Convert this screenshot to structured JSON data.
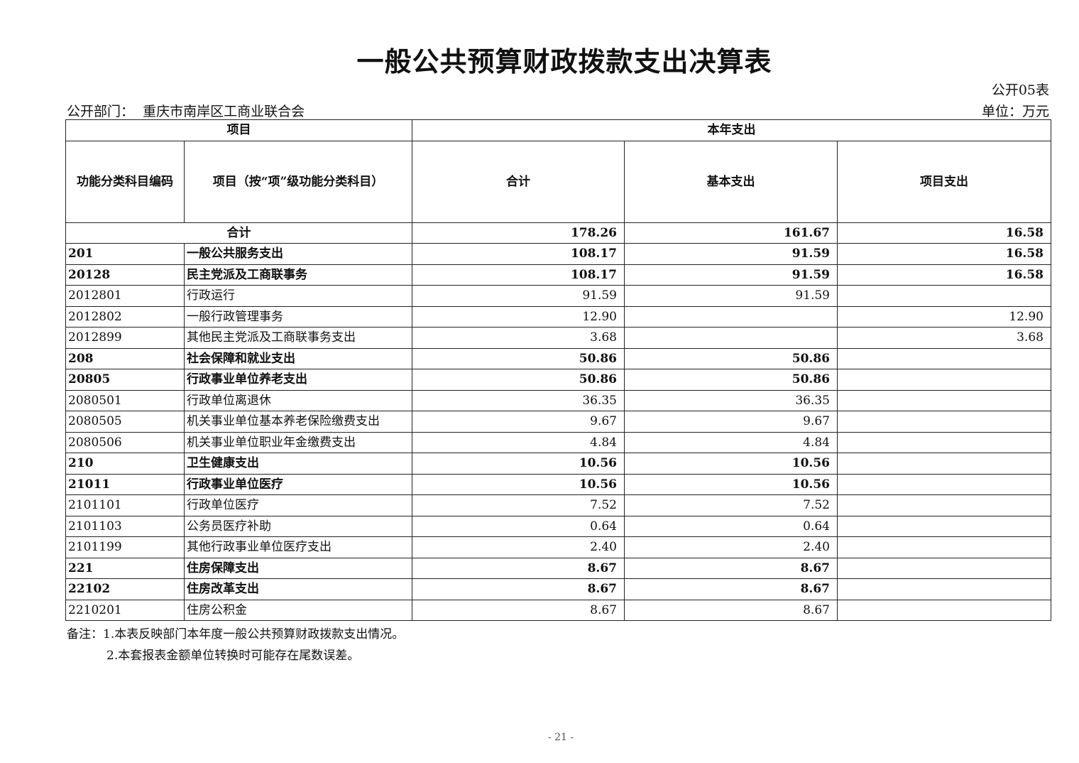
{
  "title": "一般公共预算财政拨款支出决算表",
  "form_no": "公开05表",
  "department_label": "公开部门：",
  "department": "重庆市南岸区工商业联合会",
  "unit": "单位：万元",
  "headers": {
    "project": "项目",
    "current_year": "本年支出",
    "code": "功能分类科目编码",
    "item": "项目（按“项”级功能分类科目）",
    "total": "合计",
    "basic": "基本支出",
    "project_exp": "项目支出"
  },
  "total_row": {
    "label": "合计",
    "total": "178.26",
    "basic": "161.67",
    "project": "16.58"
  },
  "rows": [
    {
      "code": "201",
      "name": "一般公共服务支出",
      "total": "108.17",
      "basic": "91.59",
      "project": "16.58",
      "bold": true
    },
    {
      "code": "20128",
      "name": "民主党派及工商联事务",
      "total": "108.17",
      "basic": "91.59",
      "project": "16.58",
      "bold": true
    },
    {
      "code": "2012801",
      "name": "行政运行",
      "total": "91.59",
      "basic": "91.59",
      "project": "",
      "bold": false
    },
    {
      "code": "2012802",
      "name": "一般行政管理事务",
      "total": "12.90",
      "basic": "",
      "project": "12.90",
      "bold": false
    },
    {
      "code": "2012899",
      "name": "其他民主党派及工商联事务支出",
      "total": "3.68",
      "basic": "",
      "project": "3.68",
      "bold": false
    },
    {
      "code": "208",
      "name": "社会保障和就业支出",
      "total": "50.86",
      "basic": "50.86",
      "project": "",
      "bold": true
    },
    {
      "code": "20805",
      "name": "行政事业单位养老支出",
      "total": "50.86",
      "basic": "50.86",
      "project": "",
      "bold": true
    },
    {
      "code": "2080501",
      "name": "行政单位离退休",
      "total": "36.35",
      "basic": "36.35",
      "project": "",
      "bold": false
    },
    {
      "code": "2080505",
      "name": "机关事业单位基本养老保险缴费支出",
      "total": "9.67",
      "basic": "9.67",
      "project": "",
      "bold": false
    },
    {
      "code": "2080506",
      "name": "机关事业单位职业年金缴费支出",
      "total": "4.84",
      "basic": "4.84",
      "project": "",
      "bold": false
    },
    {
      "code": "210",
      "name": "卫生健康支出",
      "total": "10.56",
      "basic": "10.56",
      "project": "",
      "bold": true
    },
    {
      "code": "21011",
      "name": "行政事业单位医疗",
      "total": "10.56",
      "basic": "10.56",
      "project": "",
      "bold": true
    },
    {
      "code": "2101101",
      "name": "行政单位医疗",
      "total": "7.52",
      "basic": "7.52",
      "project": "",
      "bold": false
    },
    {
      "code": "2101103",
      "name": "公务员医疗补助",
      "total": "0.64",
      "basic": "0.64",
      "project": "",
      "bold": false
    },
    {
      "code": "2101199",
      "name": "其他行政事业单位医疗支出",
      "total": "2.40",
      "basic": "2.40",
      "project": "",
      "bold": false
    },
    {
      "code": "221",
      "name": "住房保障支出",
      "total": "8.67",
      "basic": "8.67",
      "project": "",
      "bold": true
    },
    {
      "code": "22102",
      "name": "住房改革支出",
      "total": "8.67",
      "basic": "8.67",
      "project": "",
      "bold": true
    },
    {
      "code": "2210201",
      "name": "住房公积金",
      "total": "8.67",
      "basic": "8.67",
      "project": "",
      "bold": false
    }
  ],
  "notes": [
    "备注：1.本表反映部门本年度一般公共预算财政拨款支出情况。",
    "2.本套报表金额单位转换时可能存在尾数误差。"
  ],
  "page_number": "- 21 -"
}
